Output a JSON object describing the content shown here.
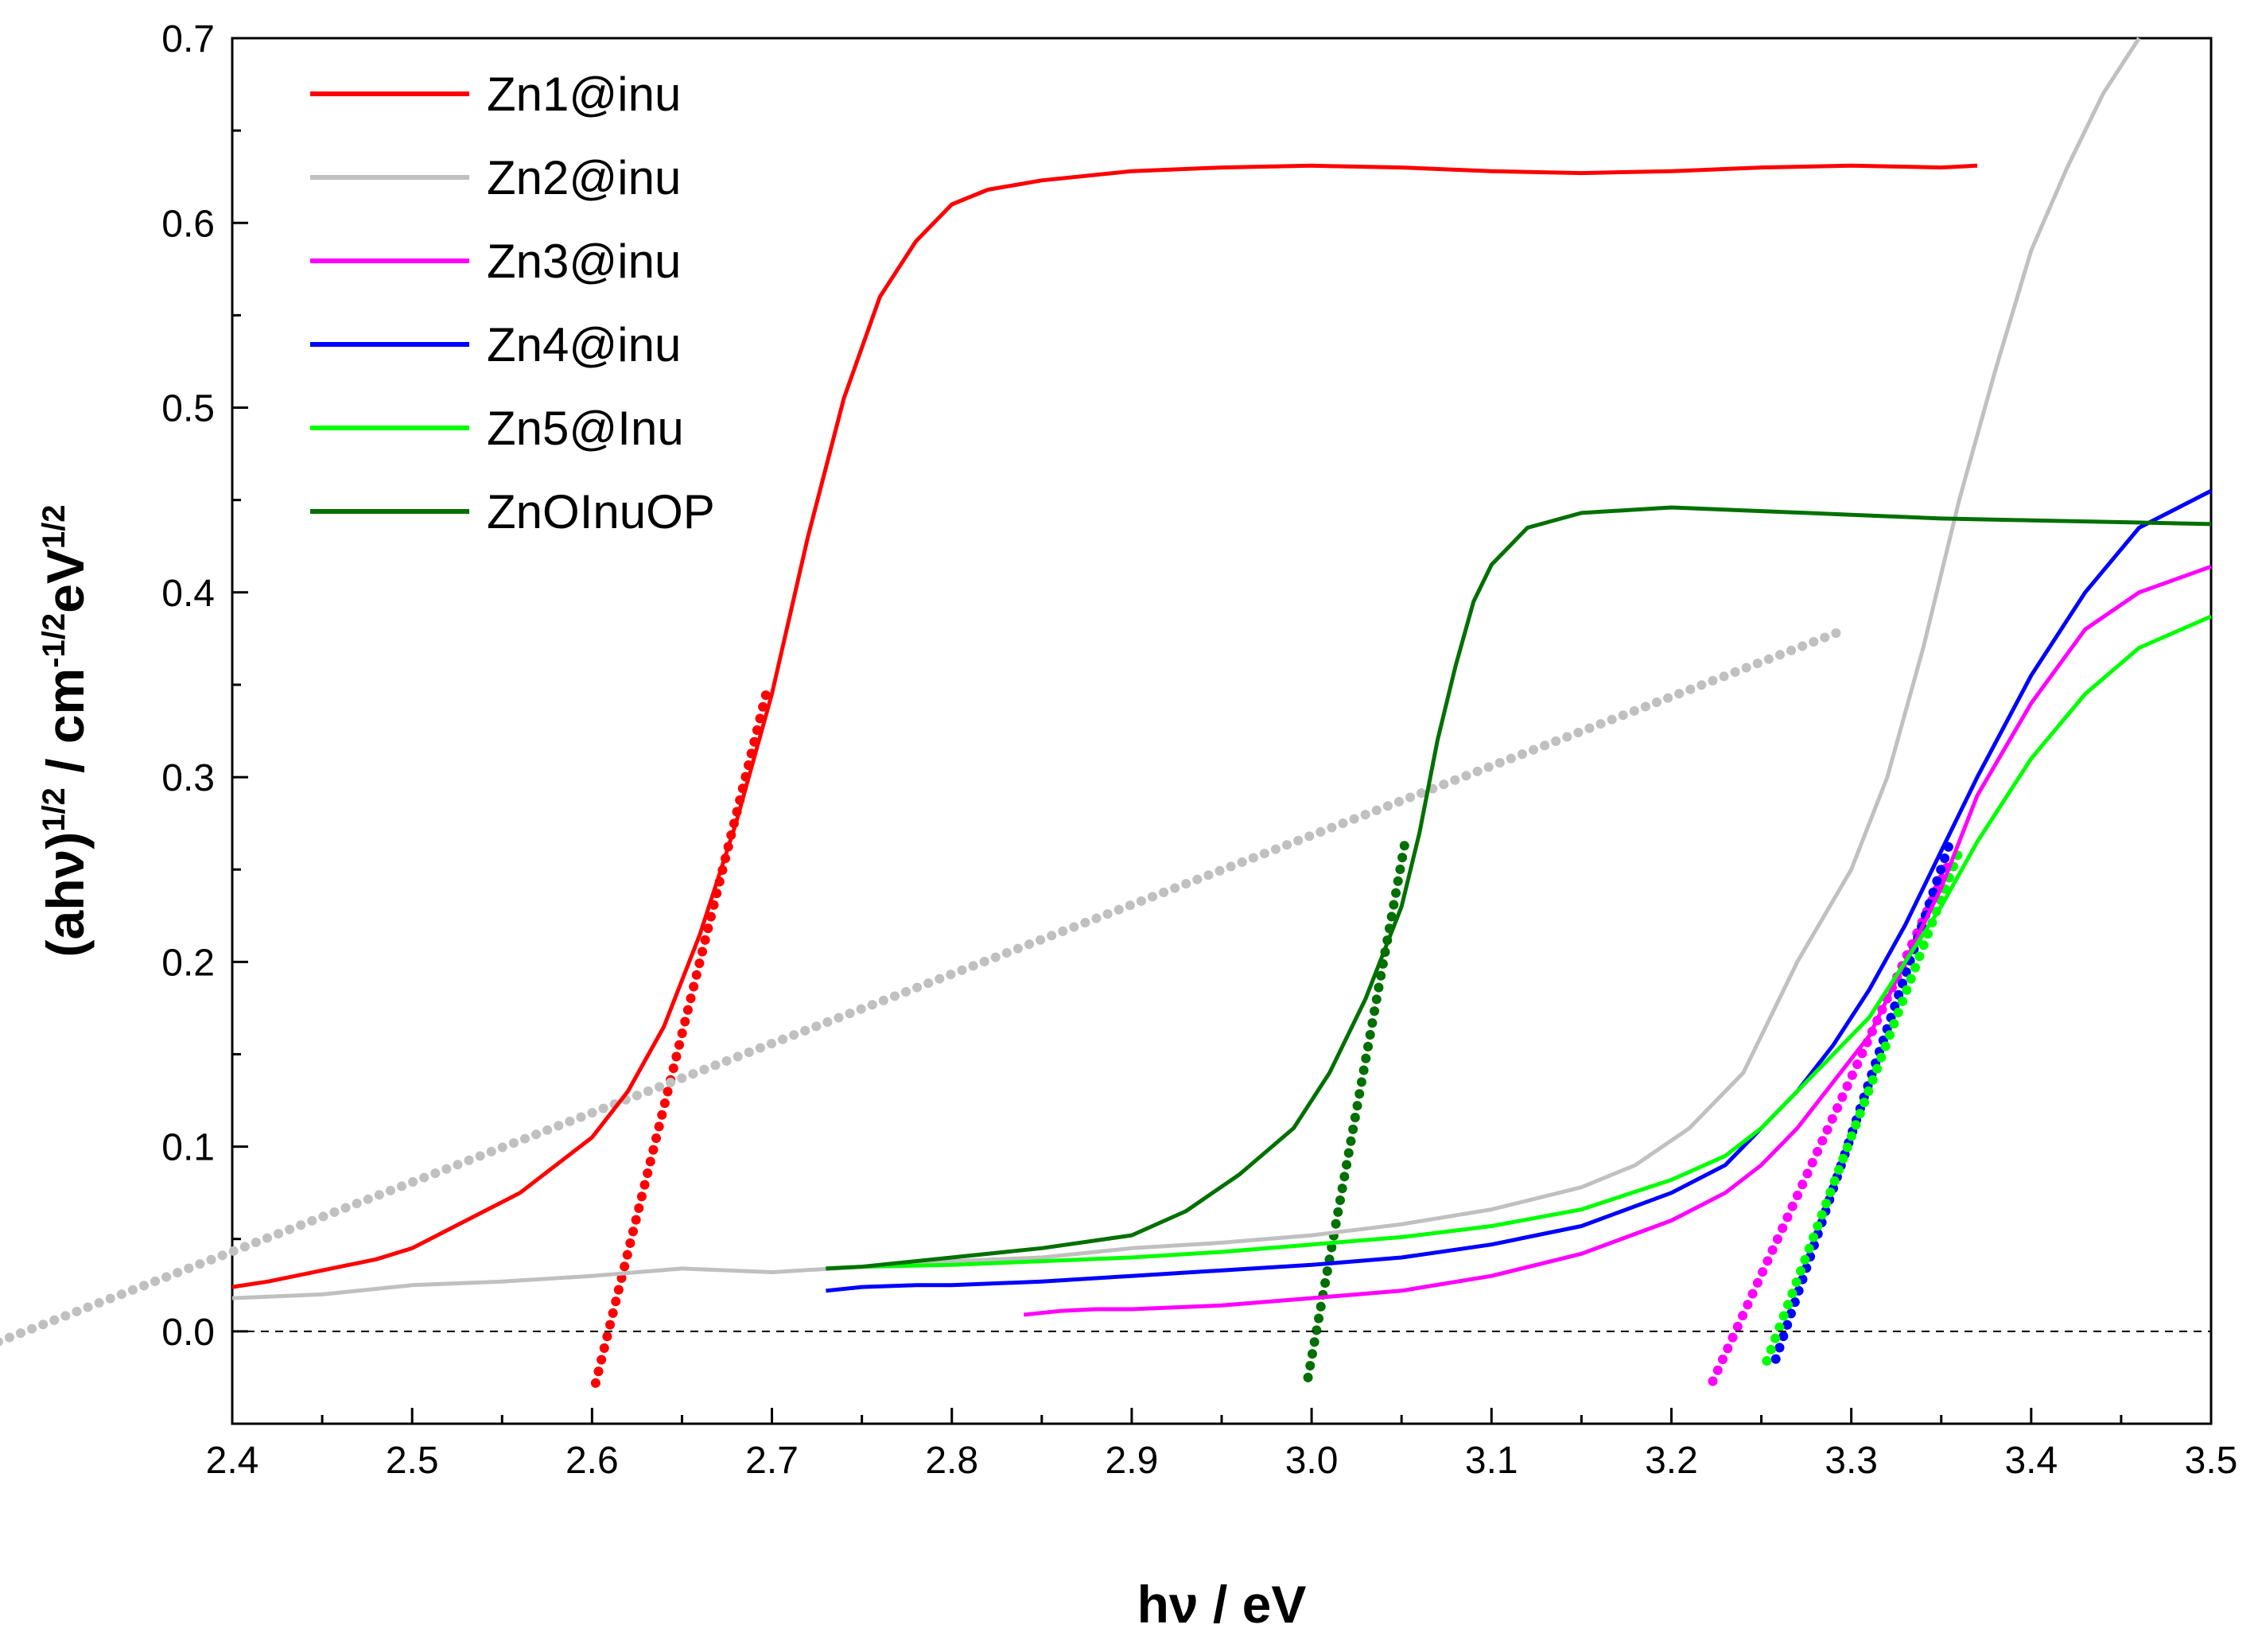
{
  "chart_data": {
    "type": "line",
    "title": "",
    "xlabel": "hν / eV",
    "ylabel": "(ahν)^1/2 / cm^-1/2eV^1/2",
    "ylabel_parts": {
      "base": "(ahν)",
      "p1": "1/2",
      "mid": " / cm",
      "p2": "-1/2",
      "mid2": "eV",
      "p3": "1/2"
    },
    "xlim": [
      2.4,
      3.5
    ],
    "ylim": [
      -0.05,
      0.7
    ],
    "xticks": [
      2.4,
      2.5,
      2.6,
      2.7,
      2.8,
      2.9,
      3.0,
      3.1,
      3.2,
      3.3,
      3.4,
      3.5
    ],
    "xtick_labels": [
      "2.4",
      "2.5",
      "2.6",
      "2.7",
      "2.8",
      "2.9",
      "3.0",
      "3.1",
      "3.2",
      "3.3",
      "3.4",
      "3.5"
    ],
    "yticks": [
      0.0,
      0.1,
      0.2,
      0.3,
      0.4,
      0.5,
      0.6,
      0.7
    ],
    "ytick_labels": [
      "0.0",
      "0.1",
      "0.2",
      "0.3",
      "0.4",
      "0.5",
      "0.6",
      "0.7"
    ],
    "legend_position": "top-left",
    "grid": false,
    "baseline": {
      "y": 0.0,
      "style": "dashed"
    },
    "series": [
      {
        "name": "Zn1@inu",
        "color": "#ff0000",
        "x": [
          2.4,
          2.42,
          2.44,
          2.46,
          2.48,
          2.5,
          2.52,
          2.54,
          2.56,
          2.58,
          2.6,
          2.62,
          2.64,
          2.66,
          2.68,
          2.7,
          2.72,
          2.74,
          2.76,
          2.78,
          2.8,
          2.82,
          2.85,
          2.9,
          2.95,
          3.0,
          3.05,
          3.1,
          3.15,
          3.2,
          3.25,
          3.3,
          3.35,
          3.37
        ],
        "y": [
          0.024,
          0.027,
          0.031,
          0.035,
          0.039,
          0.045,
          0.055,
          0.065,
          0.075,
          0.09,
          0.105,
          0.13,
          0.165,
          0.215,
          0.275,
          0.345,
          0.43,
          0.505,
          0.56,
          0.59,
          0.61,
          0.618,
          0.623,
          0.628,
          0.63,
          0.631,
          0.63,
          0.628,
          0.627,
          0.628,
          0.63,
          0.631,
          0.63,
          0.631
        ]
      },
      {
        "name": "Zn2@inu",
        "color": "#c0c0c0",
        "x": [
          2.4,
          2.45,
          2.5,
          2.55,
          2.6,
          2.65,
          2.7,
          2.75,
          2.8,
          2.85,
          2.9,
          2.95,
          3.0,
          3.05,
          3.1,
          3.15,
          3.18,
          3.21,
          3.24,
          3.27,
          3.3,
          3.32,
          3.34,
          3.36,
          3.38,
          3.4,
          3.42,
          3.44,
          3.46
        ],
        "y": [
          0.018,
          0.02,
          0.025,
          0.027,
          0.03,
          0.034,
          0.032,
          0.035,
          0.038,
          0.04,
          0.045,
          0.048,
          0.052,
          0.058,
          0.066,
          0.078,
          0.09,
          0.11,
          0.14,
          0.2,
          0.25,
          0.3,
          0.37,
          0.45,
          0.52,
          0.585,
          0.63,
          0.67,
          0.7
        ]
      },
      {
        "name": "Zn3@inu",
        "color": "#ff00ff",
        "x": [
          2.84,
          2.86,
          2.88,
          2.9,
          2.95,
          3.0,
          3.05,
          3.1,
          3.15,
          3.2,
          3.23,
          3.25,
          3.27,
          3.29,
          3.31,
          3.33,
          3.35,
          3.37,
          3.4,
          3.43,
          3.46,
          3.5
        ],
        "y": [
          0.009,
          0.011,
          0.012,
          0.012,
          0.014,
          0.018,
          0.022,
          0.03,
          0.042,
          0.06,
          0.075,
          0.09,
          0.11,
          0.135,
          0.16,
          0.2,
          0.24,
          0.29,
          0.34,
          0.38,
          0.4,
          0.414
        ]
      },
      {
        "name": "Zn4@inu",
        "color": "#0000ff",
        "x": [
          2.73,
          2.75,
          2.78,
          2.8,
          2.85,
          2.9,
          2.95,
          3.0,
          3.05,
          3.1,
          3.15,
          3.2,
          3.23,
          3.25,
          3.27,
          3.29,
          3.31,
          3.33,
          3.35,
          3.37,
          3.4,
          3.43,
          3.46,
          3.5
        ],
        "y": [
          0.022,
          0.024,
          0.025,
          0.025,
          0.027,
          0.03,
          0.033,
          0.036,
          0.04,
          0.047,
          0.057,
          0.075,
          0.09,
          0.11,
          0.13,
          0.155,
          0.185,
          0.22,
          0.26,
          0.3,
          0.355,
          0.4,
          0.435,
          0.455
        ]
      },
      {
        "name": "Zn5@Inu",
        "color": "#00ff00",
        "x": [
          2.73,
          2.75,
          2.8,
          2.85,
          2.9,
          2.95,
          3.0,
          3.05,
          3.1,
          3.15,
          3.2,
          3.23,
          3.25,
          3.27,
          3.29,
          3.31,
          3.33,
          3.35,
          3.37,
          3.4,
          3.43,
          3.46,
          3.5
        ],
        "y": [
          0.034,
          0.035,
          0.036,
          0.038,
          0.04,
          0.043,
          0.047,
          0.051,
          0.057,
          0.066,
          0.082,
          0.095,
          0.11,
          0.13,
          0.15,
          0.17,
          0.2,
          0.23,
          0.265,
          0.31,
          0.345,
          0.37,
          0.387
        ]
      },
      {
        "name": "ZnOInuOP",
        "color": "#007000",
        "x": [
          2.73,
          2.75,
          2.8,
          2.85,
          2.9,
          2.93,
          2.96,
          2.99,
          3.01,
          3.03,
          3.05,
          3.06,
          3.07,
          3.08,
          3.09,
          3.1,
          3.12,
          3.15,
          3.2,
          3.25,
          3.3,
          3.35,
          3.4,
          3.45,
          3.5
        ],
        "y": [
          0.034,
          0.035,
          0.04,
          0.045,
          0.052,
          0.065,
          0.085,
          0.11,
          0.14,
          0.18,
          0.23,
          0.27,
          0.32,
          0.36,
          0.395,
          0.415,
          0.435,
          0.443,
          0.446,
          0.444,
          0.442,
          0.44,
          0.439,
          0.438,
          0.437
        ]
      }
    ],
    "fit_lines": [
      {
        "color": "#ff0000",
        "x": [
          2.602,
          2.698
        ],
        "y": [
          -0.028,
          0.35
        ]
      },
      {
        "color": "#c0c0c0",
        "x": [
          2.245,
          3.297
        ],
        "y": [
          -0.015,
          0.38
        ],
        "x_start_note": ""
      },
      {
        "color": "#ff00ff",
        "x": [
          3.223,
          3.355
        ],
        "y": [
          -0.027,
          0.255
        ]
      },
      {
        "color": "#0000ff",
        "x": [
          3.258,
          3.355
        ],
        "y": [
          -0.015,
          0.265
        ]
      },
      {
        "color": "#00ff00",
        "x": [
          3.253,
          3.36
        ],
        "y": [
          -0.016,
          0.26
        ]
      },
      {
        "color": "#007000",
        "x": [
          2.998,
          3.052
        ],
        "y": [
          -0.025,
          0.265
        ]
      }
    ]
  }
}
